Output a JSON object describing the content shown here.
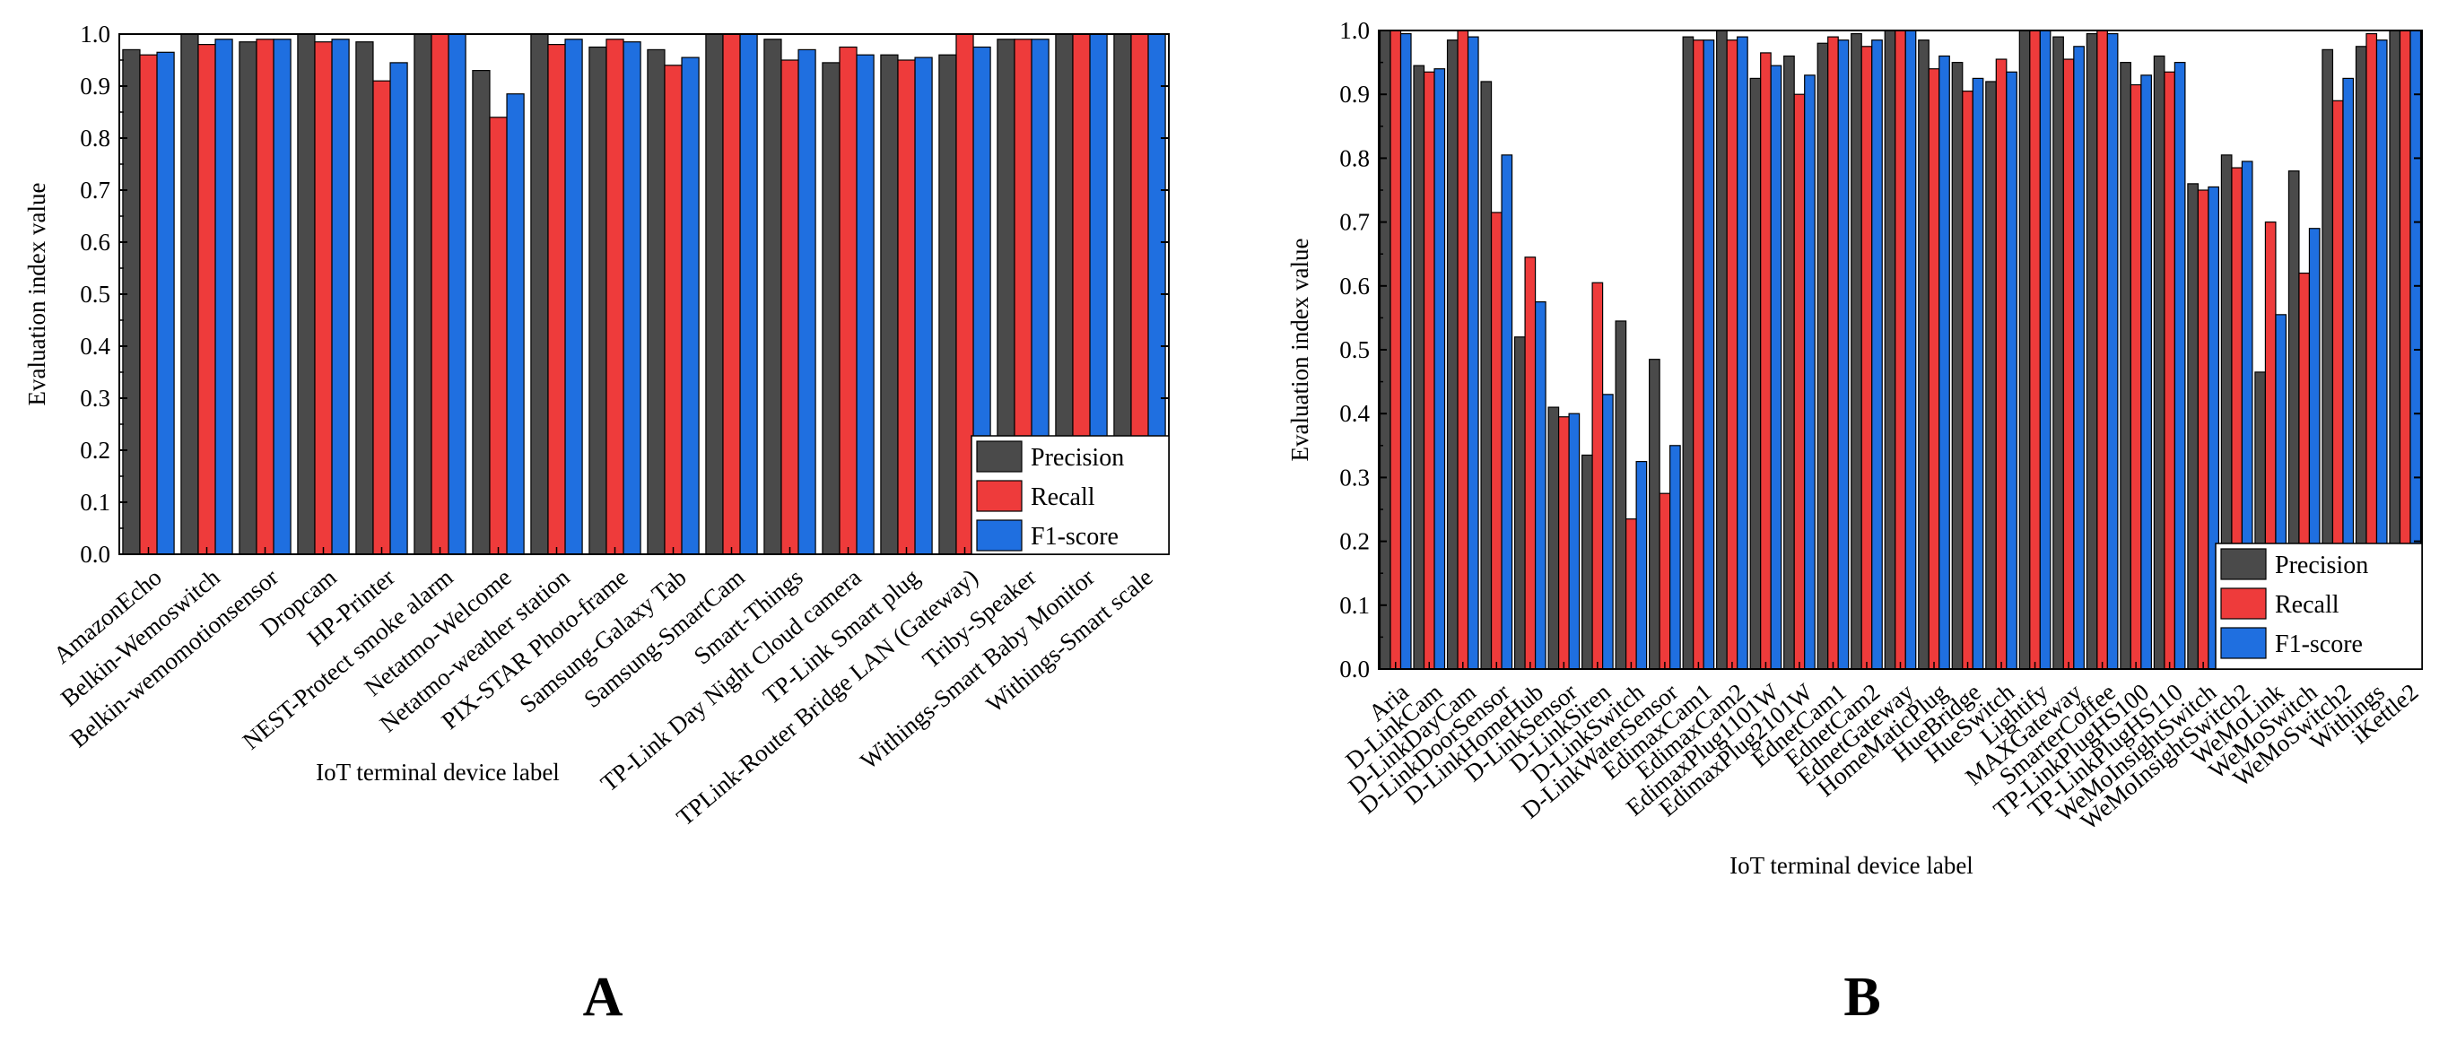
{
  "colors": {
    "precision": "#4a4a4a",
    "recall": "#ee3b3b",
    "f1": "#1f6fe0",
    "outline": "#000000"
  },
  "panels": [
    {
      "letter": "A",
      "chart_data": {
        "type": "bar",
        "title": "",
        "xlabel": "IoT terminal device label",
        "ylabel": "Evaluation index value",
        "ylim": [
          0,
          1.0
        ],
        "yticks": [
          "0.0",
          "0.1",
          "0.2",
          "0.3",
          "0.4",
          "0.5",
          "0.6",
          "0.7",
          "0.8",
          "0.9",
          "1.0"
        ],
        "legend_position": "bottom-right",
        "categories": [
          "AmazonEcho",
          "Belkin-Wemoswitch",
          "Belkin-wemomotionsensor",
          "Dropcam",
          "HP-Printer",
          "NEST-Protect smoke alarm",
          "Netatmo-Welcome",
          "Netatmo-weather station",
          "PIX-STAR Photo-frame",
          "Samsung-Galaxy Tab",
          "Samsung-SmartCam",
          "Smart-Things",
          "TP-Link Day Night Cloud camera",
          "TP-Link Smart plug",
          "TPLink-Router Bridge LAN (Gateway)",
          "Triby-Speaker",
          "Withings-Smart Baby Monitor",
          "Withings-Smart scale"
        ],
        "series": [
          {
            "name": "Precision",
            "values": [
              0.97,
              1.0,
              0.985,
              1.0,
              0.985,
              1.0,
              0.93,
              1.0,
              0.975,
              0.97,
              1.0,
              0.99,
              0.945,
              0.96,
              0.96,
              0.99,
              1.0,
              1.0
            ]
          },
          {
            "name": "Recall",
            "values": [
              0.96,
              0.98,
              0.99,
              0.985,
              0.91,
              1.0,
              0.84,
              0.98,
              0.99,
              0.94,
              1.0,
              0.95,
              0.975,
              0.95,
              1.0,
              0.99,
              1.0,
              1.0
            ]
          },
          {
            "name": "F1-score",
            "values": [
              0.965,
              0.99,
              0.99,
              0.99,
              0.945,
              1.0,
              0.885,
              0.99,
              0.985,
              0.955,
              1.0,
              0.97,
              0.96,
              0.955,
              0.975,
              0.99,
              1.0,
              1.0
            ]
          }
        ]
      }
    },
    {
      "letter": "B",
      "chart_data": {
        "type": "bar",
        "title": "",
        "xlabel": "IoT terminal device label",
        "ylabel": "Evaluation index value",
        "ylim": [
          0,
          1.0
        ],
        "yticks": [
          "0.0",
          "0.1",
          "0.2",
          "0.3",
          "0.4",
          "0.5",
          "0.6",
          "0.7",
          "0.8",
          "0.9",
          "1.0"
        ],
        "legend_position": "bottom-right",
        "categories": [
          "Aria",
          "D-LinkCam",
          "D-LinkDayCam",
          "D-LinkDoorSensor",
          "D-LinkHomeHub",
          "D-LinkSensor",
          "D-LinkSiren",
          "D-LinkSwitch",
          "D-LinkWaterSensor",
          "EdimaxCam1",
          "EdimaxCam2",
          "EdimaxPlug1101W",
          "EdimaxPlug2101W",
          "EdnetCam1",
          "EdnetCam2",
          "EdnetGateway",
          "HomeMaticPlug",
          "HueBridge",
          "HueSwitch",
          "Lightify",
          "MAXGateway",
          "SmarterCoffee",
          "TP-LinkPlugHS100",
          "TP-LinkPlugHS110",
          "WeMoInsightSwitch",
          "WeMoInsightSwitch2",
          "WeMoLink",
          "WeMoSwitch",
          "WeMoSwitch2",
          "Withings",
          "iKettle2"
        ],
        "series": [
          {
            "name": "Precision",
            "values": [
              1.0,
              0.945,
              0.985,
              0.92,
              0.52,
              0.41,
              0.335,
              0.545,
              0.485,
              0.99,
              1.0,
              0.925,
              0.96,
              0.98,
              0.995,
              1.0,
              0.985,
              0.95,
              0.92,
              1.0,
              0.99,
              0.995,
              0.95,
              0.96,
              0.76,
              0.805,
              0.465,
              0.78,
              0.97,
              0.975,
              1.0
            ]
          },
          {
            "name": "Recall",
            "values": [
              1.0,
              0.935,
              1.0,
              0.715,
              0.645,
              0.395,
              0.605,
              0.235,
              0.275,
              0.985,
              0.985,
              0.965,
              0.9,
              0.99,
              0.975,
              1.0,
              0.94,
              0.905,
              0.955,
              1.0,
              0.955,
              1.0,
              0.915,
              0.935,
              0.75,
              0.785,
              0.7,
              0.62,
              0.89,
              0.995,
              1.0
            ]
          },
          {
            "name": "F1-score",
            "values": [
              0.995,
              0.94,
              0.99,
              0.805,
              0.575,
              0.4,
              0.43,
              0.325,
              0.35,
              0.985,
              0.99,
              0.945,
              0.93,
              0.985,
              0.985,
              1.0,
              0.96,
              0.925,
              0.935,
              1.0,
              0.975,
              0.995,
              0.93,
              0.95,
              0.755,
              0.795,
              0.555,
              0.69,
              0.925,
              0.985,
              1.0
            ]
          }
        ]
      }
    }
  ]
}
